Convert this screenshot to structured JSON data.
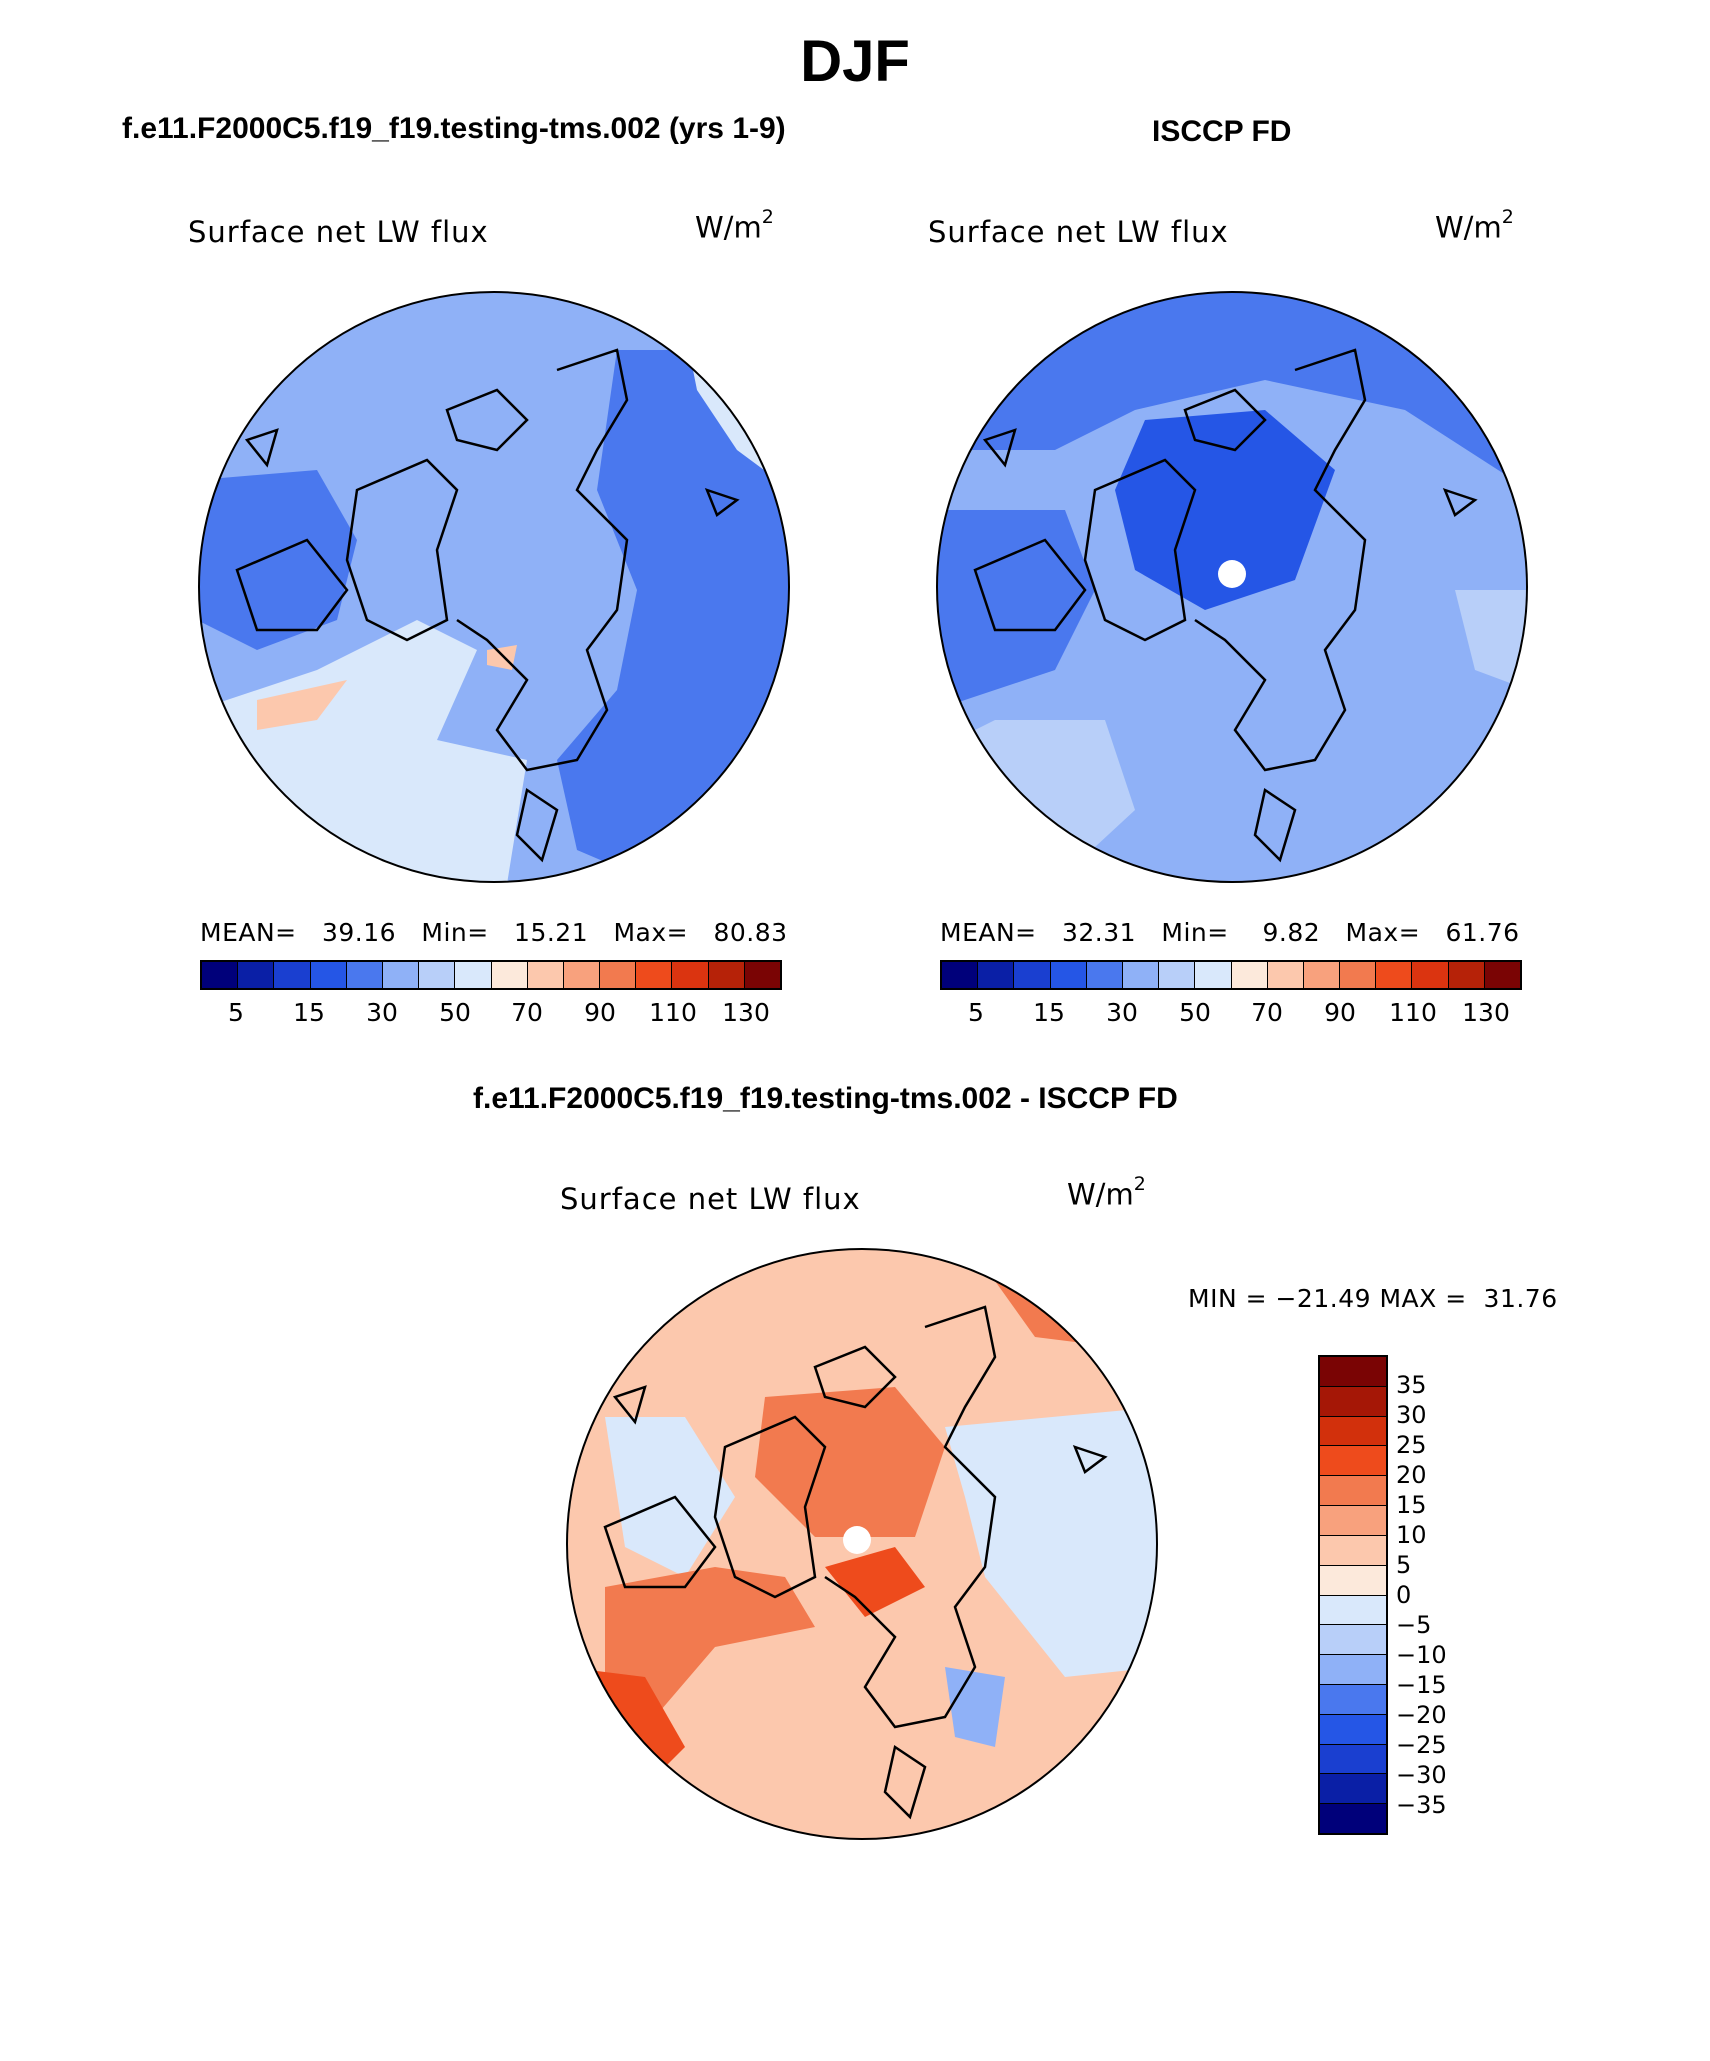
{
  "figure": {
    "title": "DJF"
  },
  "panels": [
    {
      "id": "model",
      "title": "f.e11.F2000C5.f19_f19.testing-tms.002 (yrs 1-9)",
      "variable": "Surface net LW flux",
      "units": "W/m",
      "units_exp": "2",
      "stats_mean_label": "MEAN=",
      "stats_mean": "39.16",
      "stats_min_label": "Min=",
      "stats_min": "15.21",
      "stats_max_label": "Max=",
      "stats_max": "80.83",
      "pole_hole": false
    },
    {
      "id": "obs",
      "title": "ISCCP FD",
      "variable": "Surface net LW flux",
      "units": "W/m",
      "units_exp": "2",
      "stats_mean_label": "MEAN=",
      "stats_mean": "32.31",
      "stats_min_label": "Min=",
      "stats_min": "9.82",
      "stats_max_label": "Max=",
      "stats_max": "61.76",
      "pole_hole": true
    },
    {
      "id": "diff",
      "title": "f.e11.F2000C5.f19_f19.testing-tms.002 - ISCCP FD",
      "variable": "Surface net LW flux",
      "units": "W/m",
      "units_exp": "2",
      "minmax_text": "MIN = −21.49 MAX =  31.76",
      "pole_hole": true
    }
  ],
  "colorbar_horizontal": {
    "colors": [
      "#00007a",
      "#0a1fa6",
      "#1a3fd0",
      "#2556e6",
      "#4a78ee",
      "#8fb1f7",
      "#b8cff9",
      "#d9e8fb",
      "#fce9db",
      "#fcc8ad",
      "#f8a17d",
      "#f27a4f",
      "#ee4b1c",
      "#db3410",
      "#b62208",
      "#7a0404"
    ],
    "tick_labels": [
      "5",
      "15",
      "30",
      "50",
      "70",
      "90",
      "110",
      "130"
    ]
  },
  "colorbar_vertical": {
    "colors": [
      "#7a0404",
      "#a51706",
      "#d2300c",
      "#ee4b1c",
      "#f27a4f",
      "#f8a17d",
      "#fcc8ad",
      "#fce9db",
      "#d9e8fb",
      "#b8cff9",
      "#8fb1f7",
      "#4a78ee",
      "#2556e6",
      "#1a3fd0",
      "#0a1fa6",
      "#00007a"
    ],
    "tick_labels": [
      "35",
      "30",
      "25",
      "20",
      "15",
      "10",
      "5",
      "0",
      "−5",
      "−10",
      "−15",
      "−20",
      "−25",
      "−30",
      "−35"
    ]
  },
  "map_fill_colors": {
    "model_base": "#8fb1f7",
    "model_dark": "#4a78ee",
    "model_light": "#d9e8fb",
    "model_warm": "#fcc8ad",
    "obs_base": "#8fb1f7",
    "obs_dark": "#2556e6",
    "obs_mid": "#4a78ee",
    "obs_light": "#b8cff9",
    "diff_base": "#fcc8ad",
    "diff_warm": "#f27a4f",
    "diff_hot": "#ee4b1c",
    "diff_cool": "#d9e8fb",
    "diff_blue": "#8fb1f7"
  }
}
